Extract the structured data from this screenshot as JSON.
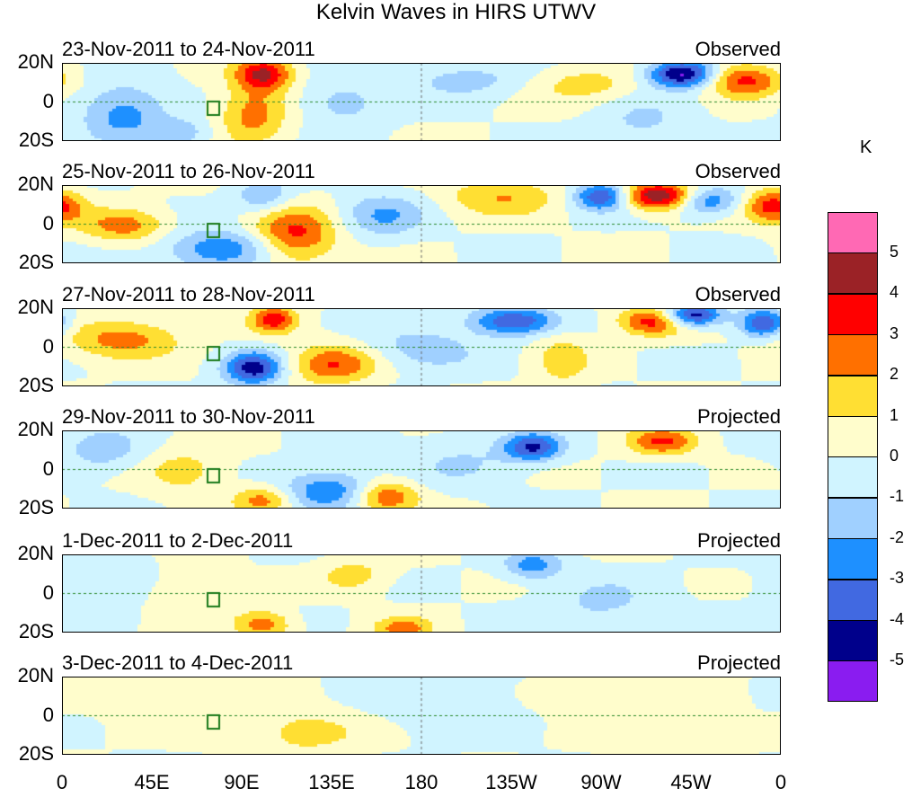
{
  "chart_data": {
    "type": "heatmap",
    "title": "Kelvin Waves in HIRS UTWV",
    "units": "K",
    "x_ticks": [
      "0",
      "45E",
      "90E",
      "135E",
      "180",
      "135W",
      "90W",
      "45W",
      "0"
    ],
    "y_ticks": [
      "20N",
      "0",
      "20S"
    ],
    "xlim": [
      0,
      360
    ],
    "ylim": [
      -20,
      20
    ],
    "panels": [
      {
        "period": "23-Nov-2011 to 24-Nov-2011",
        "status": "Observed"
      },
      {
        "period": "25-Nov-2011 to 26-Nov-2011",
        "status": "Observed"
      },
      {
        "period": "27-Nov-2011 to 28-Nov-2011",
        "status": "Observed"
      },
      {
        "period": "29-Nov-2011 to 30-Nov-2011",
        "status": "Projected"
      },
      {
        "period": "1-Dec-2011 to 2-Dec-2011",
        "status": "Projected"
      },
      {
        "period": "3-Dec-2011 to 4-Dec-2011",
        "status": "Projected"
      }
    ],
    "colorbar": {
      "labels": [
        "5",
        "4",
        "3",
        "2",
        "1",
        "0",
        "-1",
        "-2",
        "-3",
        "-4",
        "-5"
      ],
      "colors": [
        "#ff69b4",
        "#9b2226",
        "#ff0000",
        "#ff7000",
        "#ffdf33",
        "#fffdcc",
        "#d0f4ff",
        "#a0d0ff",
        "#1e90ff",
        "#4169e1",
        "#00008b",
        "#8a1cf0"
      ]
    }
  }
}
